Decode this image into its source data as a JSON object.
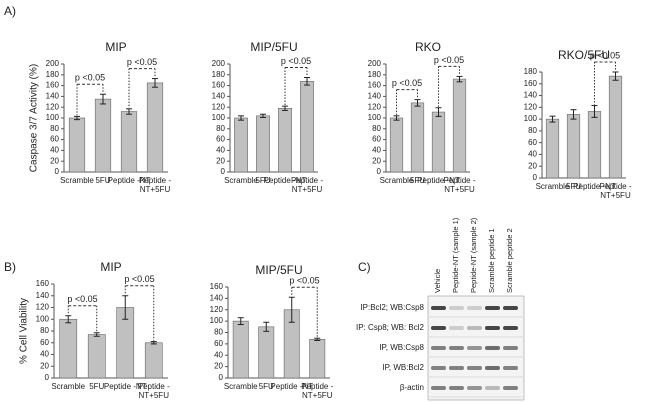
{
  "panels": [
    "A)",
    "B)",
    "C)"
  ],
  "chart_data": [
    {
      "type": "bar",
      "title": "MIP",
      "ylabel": "Caspase 3/7 Activity (%)",
      "categories": [
        "Scramble",
        "5FU",
        "Peptide -NT",
        "Peptide -NT+5FU"
      ],
      "values": [
        100,
        135,
        112,
        165
      ],
      "errors": [
        3,
        9,
        5,
        8
      ],
      "color": "#c0c0c0",
      "ylim": [
        0,
        200
      ],
      "yticks": [
        0,
        20,
        40,
        60,
        80,
        100,
        120,
        140,
        160,
        180,
        200
      ],
      "annotations": [
        {
          "text": "p <0.05",
          "bars": [
            0,
            1
          ]
        },
        {
          "text": "p <0.05",
          "bars": [
            2,
            3
          ]
        }
      ]
    },
    {
      "type": "bar",
      "title": "MIP/5FU",
      "categories": [
        "Scramble",
        "5FU",
        "Peptide -NT",
        "Peptide -NT+5FU"
      ],
      "values": [
        100,
        104,
        118,
        168
      ],
      "errors": [
        4,
        3,
        4,
        7
      ],
      "color": "#c0c0c0",
      "ylim": [
        0,
        200
      ],
      "yticks": [
        0,
        20,
        40,
        60,
        80,
        100,
        120,
        140,
        160,
        180,
        200
      ],
      "annotations": [
        {
          "text": "p <0.05",
          "bars": [
            2,
            3
          ]
        }
      ]
    },
    {
      "type": "bar",
      "title": "RKO",
      "categories": [
        "Scramble",
        "5FU",
        "Peptide -NT",
        "Peptide -NT+5FU"
      ],
      "values": [
        100,
        128,
        111,
        172
      ],
      "errors": [
        4,
        6,
        8,
        5
      ],
      "color": "#c0c0c0",
      "ylim": [
        0,
        200
      ],
      "yticks": [
        0,
        20,
        40,
        60,
        80,
        100,
        120,
        140,
        160,
        180,
        200
      ],
      "annotations": [
        {
          "text": "p <0.05",
          "bars": [
            0,
            1
          ]
        },
        {
          "text": "p <0.05",
          "bars": [
            2,
            3
          ]
        }
      ]
    },
    {
      "type": "bar",
      "title": "RKO/5FU",
      "categories": [
        "Scramble",
        "5FU",
        "Peptide -NT",
        "Peptide -NT+5FU"
      ],
      "values": [
        100,
        108,
        113,
        173
      ],
      "errors": [
        5,
        8,
        10,
        7
      ],
      "color": "#c0c0c0",
      "ylim": [
        0,
        180
      ],
      "yticks": [
        0,
        20,
        40,
        60,
        80,
        100,
        120,
        140,
        160,
        180
      ],
      "annotations": [
        {
          "text": "p <0.05",
          "bars": [
            2,
            3
          ]
        }
      ]
    },
    {
      "type": "bar",
      "title": "MIP",
      "ylabel": "% Cell Viability",
      "categories": [
        "Scramble",
        "5FU",
        "Peptide -NT",
        "Peptide -NT+5FU"
      ],
      "values": [
        100,
        74,
        120,
        60
      ],
      "errors": [
        6,
        3,
        20,
        2
      ],
      "color": "#c0c0c0",
      "ylim": [
        0,
        160
      ],
      "yticks": [
        0,
        20,
        40,
        60,
        80,
        100,
        120,
        140,
        160
      ],
      "annotations": [
        {
          "text": "p <0.05",
          "bars": [
            0,
            1
          ]
        },
        {
          "text": "p <0.05",
          "bars": [
            2,
            3
          ]
        }
      ]
    },
    {
      "type": "bar",
      "title": "MIP/5FU",
      "categories": [
        "Scramble",
        "5FU",
        "Peptide -NT",
        "Peptide -NT+5FU"
      ],
      "values": [
        100,
        90,
        120,
        68
      ],
      "errors": [
        6,
        8,
        22,
        2
      ],
      "color": "#c0c0c0",
      "ylim": [
        0,
        160
      ],
      "yticks": [
        0,
        20,
        40,
        60,
        80,
        100,
        120,
        140,
        160
      ],
      "annotations": [
        {
          "text": "p <0.05",
          "bars": [
            2,
            3
          ]
        }
      ]
    }
  ],
  "blot": {
    "lanes": [
      "Vehicle",
      "Peptide-NT (sample 1)",
      "Peptide-NT (sample 2)",
      "Scramble peptide 1",
      "Scramble peptide 2"
    ],
    "rows": [
      "IP:Bcl2; WB:Csp8",
      "IP: Csp8; WB: Bcl2",
      "IP, WB:Csp8",
      "IP, WB:Bcl2",
      "β-actin"
    ]
  }
}
